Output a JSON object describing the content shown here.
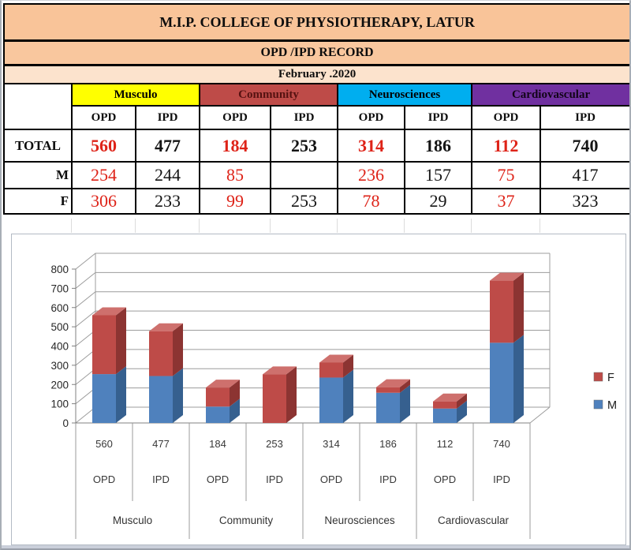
{
  "header": {
    "title": "M.I.P. COLLEGE OF PHYSIOTHERAPY, LATUR",
    "record_label": "OPD /IPD RECORD",
    "month_label": "February .2020"
  },
  "table": {
    "groups": [
      {
        "label": "Musculo",
        "bg": "#FFFF00",
        "fg": "#000000"
      },
      {
        "label": "Community",
        "bg": "#BE4B48",
        "fg": "#551110"
      },
      {
        "label": "Neurosciences",
        "bg": "#00AEEF",
        "fg": "#000000"
      },
      {
        "label": "Cardiovascular",
        "bg": "#7030A0",
        "fg": "#120418"
      }
    ],
    "sub_headers": [
      "OPD",
      "IPD",
      "OPD",
      "IPD",
      "OPD",
      "IPD",
      "OPD",
      "IPD"
    ],
    "column_value_colors": [
      "#DE2318",
      "#141414",
      "#DE2318",
      "#141414",
      "#DE2318",
      "#141414",
      "#DE2318",
      "#141414"
    ],
    "rows": [
      {
        "label": "TOTAL",
        "bold": true,
        "values": [
          "560",
          "477",
          "184",
          "253",
          "314",
          "186",
          "112",
          "740"
        ]
      },
      {
        "label": "M",
        "bold": false,
        "values": [
          "254",
          "244",
          "85",
          "",
          "236",
          "157",
          "75",
          "417"
        ]
      },
      {
        "label": "F",
        "bold": false,
        "values": [
          "306",
          "233",
          "99",
          "253",
          "78",
          "29",
          "37",
          "323"
        ]
      }
    ]
  },
  "chart_data": {
    "type": "bar",
    "stacked": true,
    "effect_3d": true,
    "title": "",
    "xlabel": "",
    "ylabel": "",
    "groups": [
      "Musculo",
      "Community",
      "Neurosciences",
      "Cardiovascular"
    ],
    "categories": [
      "OPD",
      "IPD",
      "OPD",
      "IPD",
      "OPD",
      "IPD",
      "OPD",
      "IPD"
    ],
    "category_totals": [
      560,
      477,
      184,
      253,
      314,
      186,
      112,
      740
    ],
    "series": [
      {
        "name": "M",
        "values": [
          254,
          244,
          85,
          0,
          236,
          157,
          75,
          417
        ],
        "color": "#4F81BD",
        "color_side": "#36608F",
        "color_top": "#7299C9"
      },
      {
        "name": "F",
        "values": [
          306,
          233,
          99,
          253,
          78,
          29,
          37,
          323
        ],
        "color": "#BE4B48",
        "color_side": "#8C3432",
        "color_top": "#CE706D"
      }
    ],
    "ylim": [
      0,
      800
    ],
    "ytick_step": 100,
    "grid": true,
    "legend_position": "right",
    "legend": [
      {
        "label": "F",
        "color": "#BE4B48"
      },
      {
        "label": "M",
        "color": "#4F81BD"
      }
    ]
  }
}
